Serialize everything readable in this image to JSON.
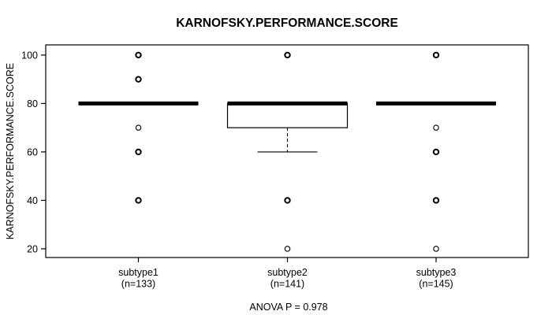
{
  "chart_data": {
    "type": "boxplot",
    "title": "KARNOFSKY.PERFORMANCE.SCORE",
    "ylabel": "KARNOFSKY.PERFORMANCE.SCORE",
    "xlabel": "",
    "annotation": "ANOVA P = 0.978",
    "yticks": [
      20,
      40,
      60,
      80,
      100
    ],
    "ylim": [
      16.4,
      104.2
    ],
    "grid": false,
    "legend": null,
    "colors": {
      "foreground": "#000000",
      "background": "#ffffff"
    },
    "groups": [
      {
        "label": "subtype1",
        "sublabel": "(n=133)",
        "stats": {
          "median": 80,
          "q1": 80,
          "q3": 80,
          "whisker_low": 80,
          "whisker_high": 80
        },
        "outliers": [
          {
            "value": 100,
            "emphasis": "bold"
          },
          {
            "value": 90,
            "emphasis": "bold"
          },
          {
            "value": 70,
            "emphasis": "light"
          },
          {
            "value": 60,
            "emphasis": "bold"
          },
          {
            "value": 40,
            "emphasis": "bold"
          }
        ]
      },
      {
        "label": "subtype2",
        "sublabel": "(n=141)",
        "stats": {
          "median": 80,
          "q1": 70,
          "q3": 80,
          "whisker_low": 60,
          "whisker_high": 80
        },
        "outliers": [
          {
            "value": 100,
            "emphasis": "bold"
          },
          {
            "value": 40,
            "emphasis": "bold"
          },
          {
            "value": 20,
            "emphasis": "light"
          }
        ]
      },
      {
        "label": "subtype3",
        "sublabel": "(n=145)",
        "stats": {
          "median": 80,
          "q1": 80,
          "q3": 80,
          "whisker_low": 80,
          "whisker_high": 80
        },
        "outliers": [
          {
            "value": 100,
            "emphasis": "bold"
          },
          {
            "value": 70,
            "emphasis": "light"
          },
          {
            "value": 60,
            "emphasis": "bold"
          },
          {
            "value": 40,
            "emphasis": "bold"
          },
          {
            "value": 20,
            "emphasis": "light"
          }
        ]
      }
    ]
  }
}
